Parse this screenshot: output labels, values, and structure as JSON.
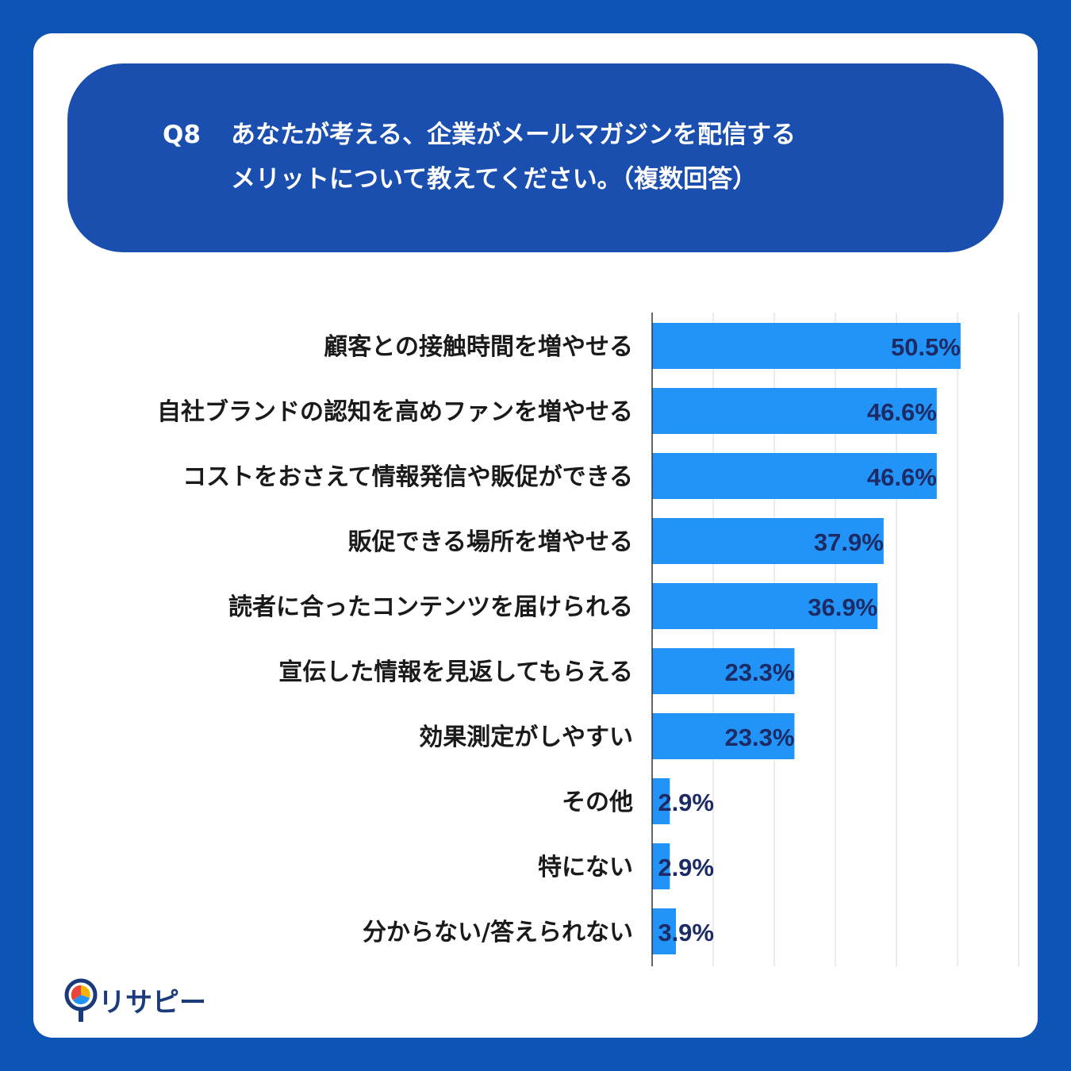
{
  "question": {
    "number": "Q8",
    "line1": "あなたが考える、企業がメールマガジンを配信する",
    "line2": "メリットについて教えてください。（複数回答）"
  },
  "brand": {
    "name": "リサピー"
  },
  "colors": {
    "background": "#0d54b5",
    "question_box": "#1a4fb0",
    "bar": "#2294f7",
    "value_text": "#1c2b66",
    "label_text": "#1a1a1a",
    "grid": "#d7d7d7"
  },
  "chart_data": {
    "type": "bar",
    "orientation": "horizontal",
    "categories": [
      "顧客との接触時間を増やせる",
      "自社ブランドの認知を高めファンを増やせる",
      "コストをおさえて情報発信や販促ができる",
      "販促できる場所を増やせる",
      "読者に合ったコンテンツを届けられる",
      "宣伝した情報を見返してもらえる",
      "効果測定がしやすい",
      "その他",
      "特にない",
      "分からない/答えられない"
    ],
    "values": [
      50.5,
      46.6,
      46.6,
      37.9,
      36.9,
      23.3,
      23.3,
      2.9,
      2.9,
      3.9
    ],
    "value_labels": [
      "50.5%",
      "46.6%",
      "46.6%",
      "37.9%",
      "36.9%",
      "23.3%",
      "23.3%",
      "2.9%",
      "2.9%",
      "3.9%"
    ],
    "xlim": [
      0,
      60
    ],
    "grid": true
  }
}
